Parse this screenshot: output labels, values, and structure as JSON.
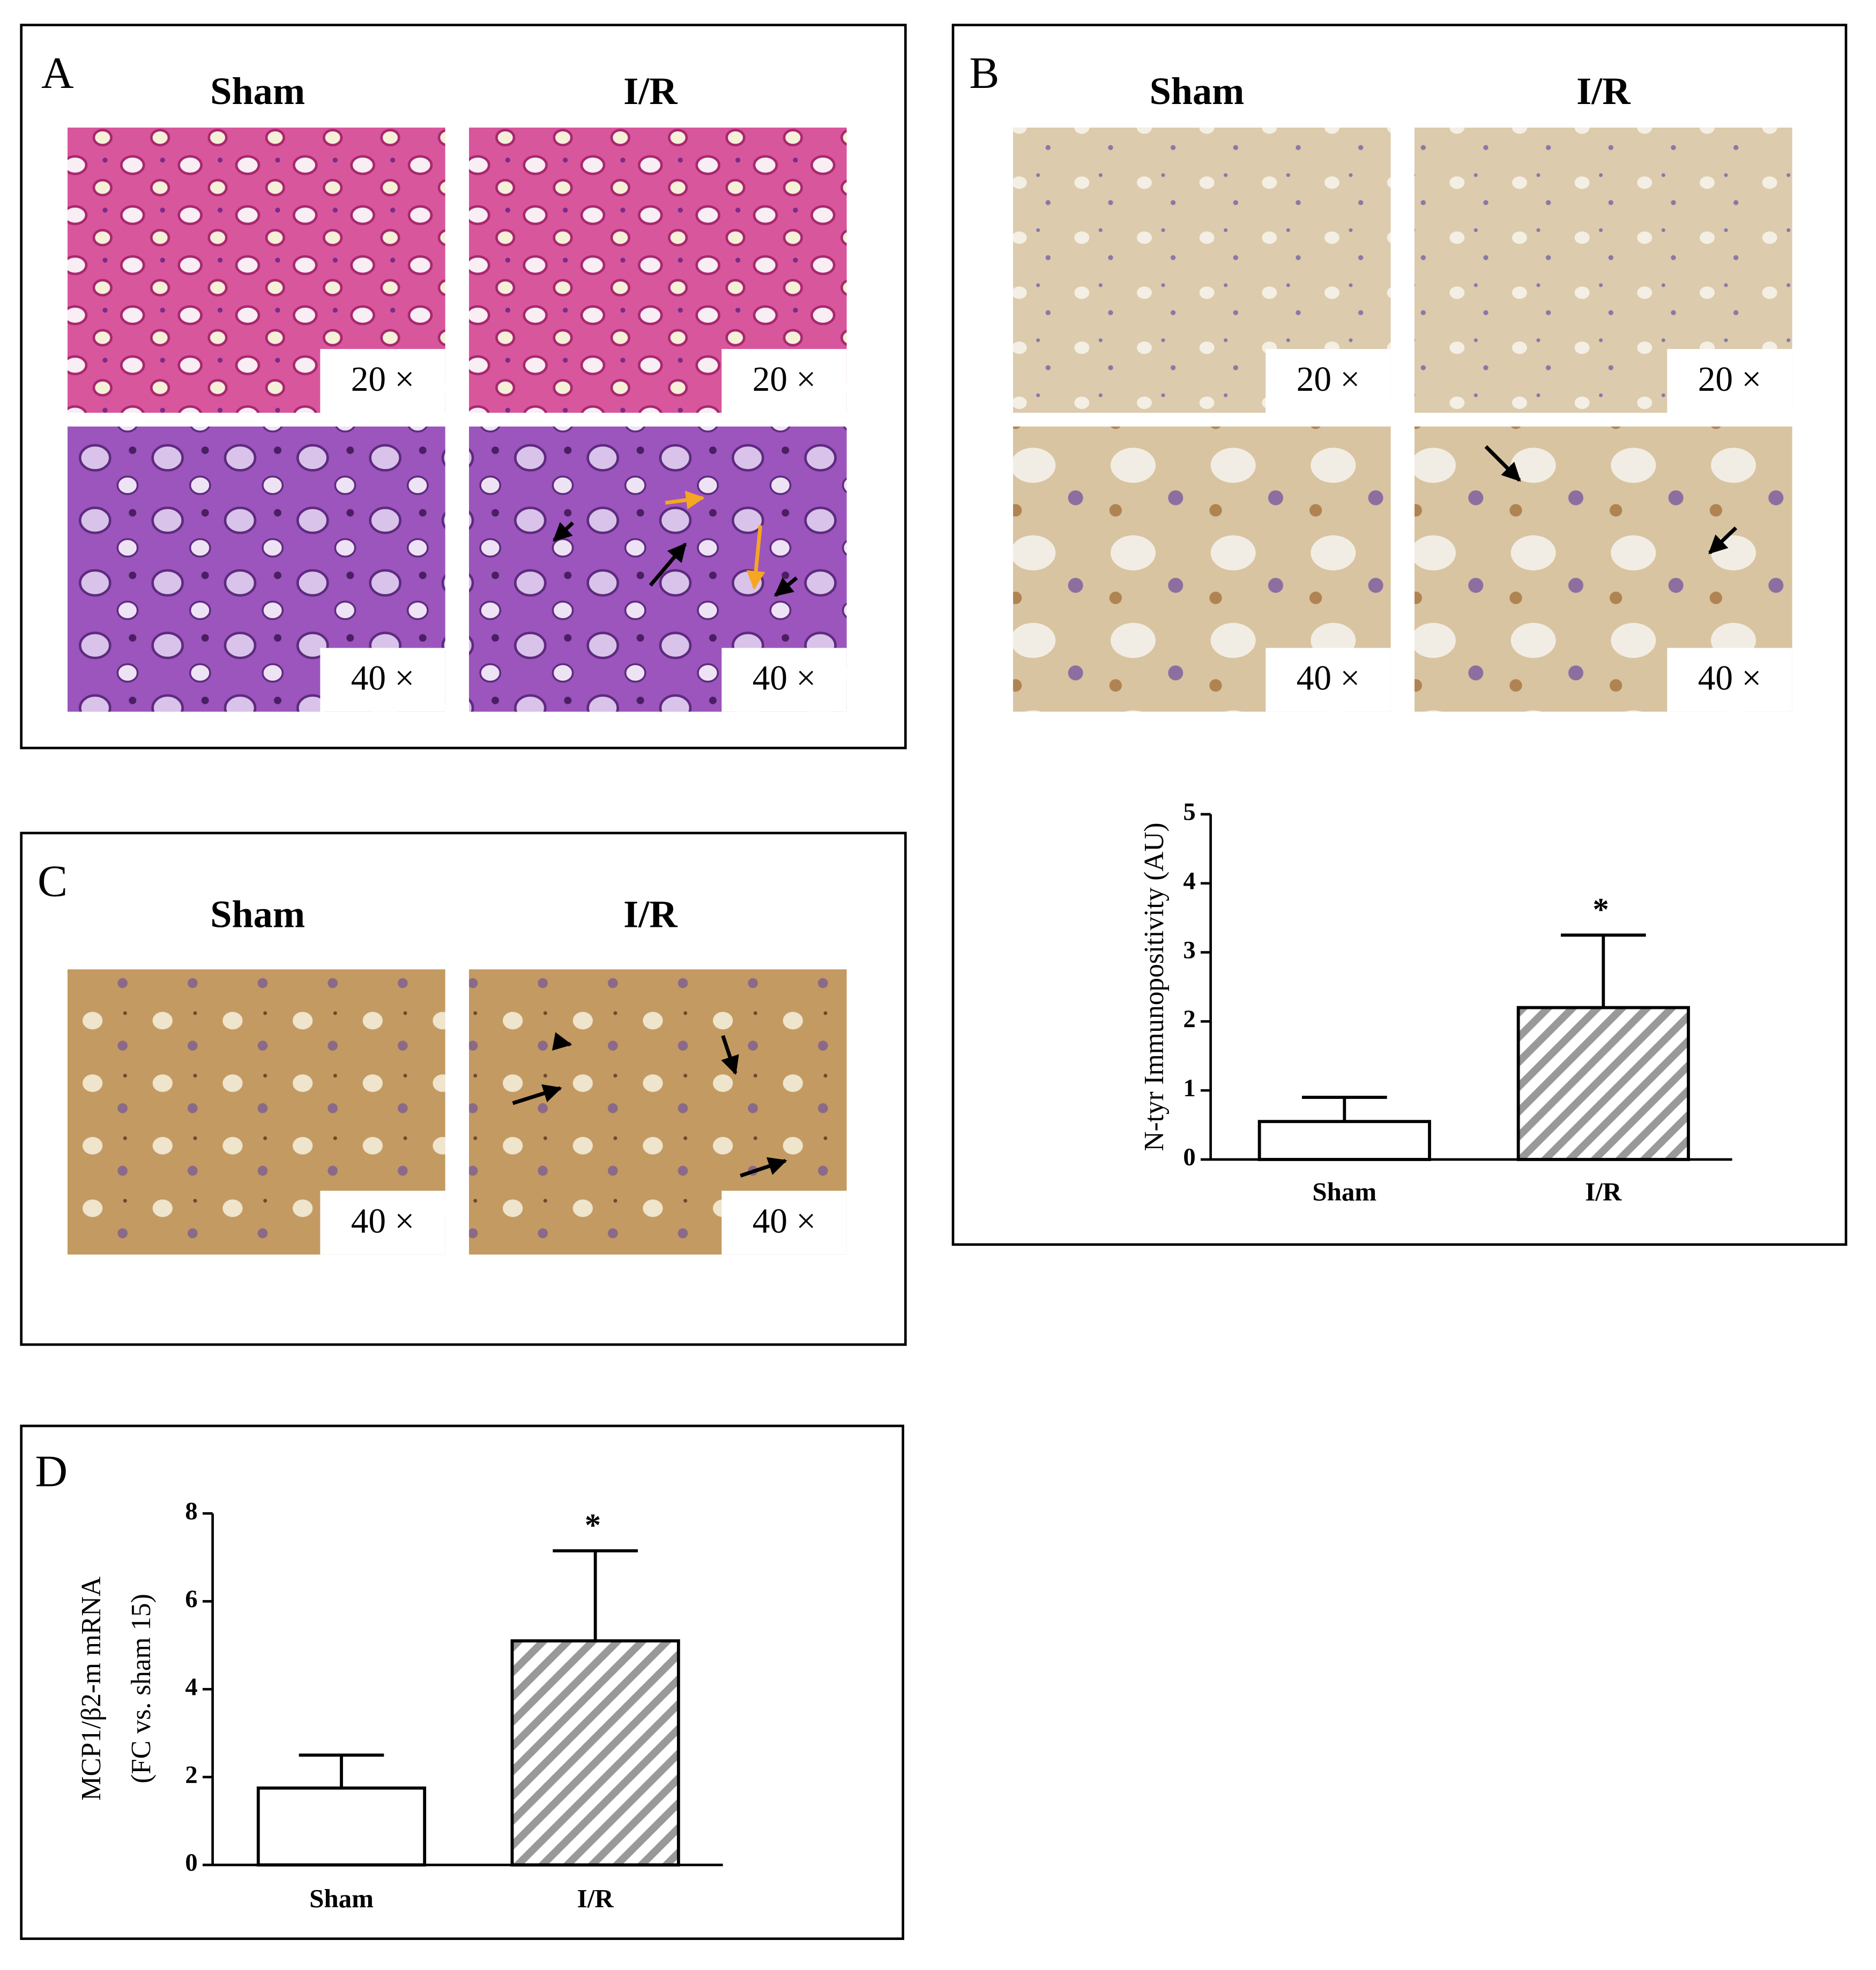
{
  "panels": {
    "A": {
      "label": "A",
      "columns": [
        "Sham",
        "I/R"
      ],
      "magnifications": [
        "20 ×",
        "20 ×",
        "40 ×",
        "40 ×"
      ]
    },
    "B": {
      "label": "B",
      "columns": [
        "Sham",
        "I/R"
      ],
      "magnifications": [
        "20 ×",
        "20 ×",
        "40 ×",
        "40 ×"
      ]
    },
    "C": {
      "label": "C",
      "columns": [
        "Sham",
        "I/R"
      ],
      "magnifications": [
        "40 ×",
        "40 ×"
      ]
    },
    "D": {
      "label": "D"
    }
  },
  "chart_data": [
    {
      "type": "bar",
      "y_label": "N-tyr Immunopositivity (AU)",
      "categories": [
        "Sham",
        "I/R"
      ],
      "values": [
        0.55,
        2.2
      ],
      "errors": [
        0.35,
        1.05
      ],
      "significance": [
        null,
        "*"
      ],
      "colors": [
        "#ffffff",
        "#999999"
      ],
      "hatch": [
        false,
        true
      ],
      "ylim": [
        0,
        5
      ],
      "yticks": [
        0,
        1,
        2,
        3,
        4,
        5
      ]
    },
    {
      "type": "bar",
      "y_label": [
        "MCP1/β2-m mRNA",
        "(FC vs. sham 15)"
      ],
      "categories": [
        "Sham",
        "I/R"
      ],
      "values": [
        1.75,
        5.1
      ],
      "errors": [
        0.75,
        2.05
      ],
      "significance": [
        null,
        "*"
      ],
      "colors": [
        "#ffffff",
        "#999999"
      ],
      "hatch": [
        false,
        true
      ],
      "ylim": [
        0,
        8
      ],
      "yticks": [
        0,
        2,
        4,
        6,
        8
      ]
    }
  ]
}
